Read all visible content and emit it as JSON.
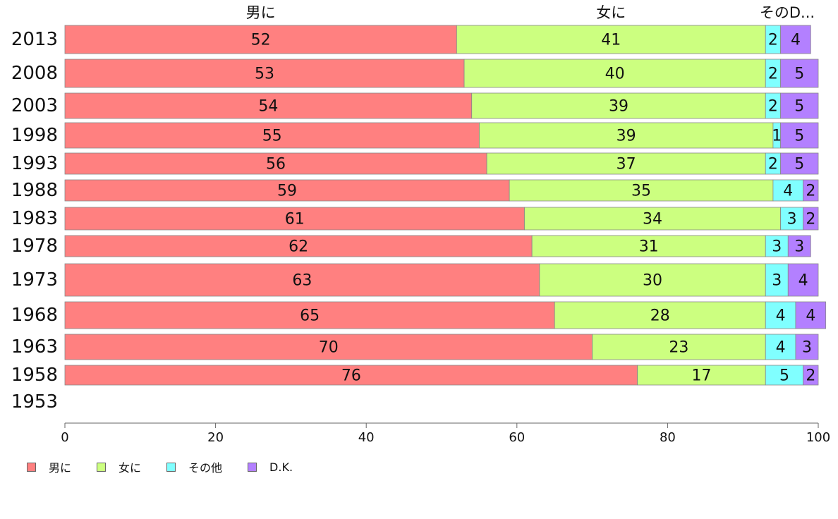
{
  "chart_data": {
    "type": "bar",
    "orientation": "horizontal",
    "stacked": true,
    "categories": [
      "2013",
      "2008",
      "2003",
      "1998",
      "1993",
      "1988",
      "1983",
      "1978",
      "1973",
      "1968",
      "1963",
      "1958",
      "1953"
    ],
    "series": [
      {
        "name": "男に",
        "header": "男に",
        "color": "#ff8080",
        "values": [
          52,
          53,
          54,
          55,
          56,
          59,
          61,
          62,
          63,
          65,
          70,
          76,
          null
        ]
      },
      {
        "name": "女に",
        "header": "女に",
        "color": "#ccff80",
        "values": [
          41,
          40,
          39,
          39,
          37,
          35,
          34,
          31,
          30,
          28,
          23,
          17,
          null
        ]
      },
      {
        "name": "その他",
        "header": "そのD...",
        "color": "#80ffff",
        "values": [
          2,
          2,
          2,
          1,
          2,
          4,
          3,
          3,
          3,
          4,
          4,
          5,
          null
        ]
      },
      {
        "name": "D.K.",
        "header": "",
        "color": "#b380ff",
        "values": [
          4,
          5,
          5,
          5,
          5,
          2,
          2,
          3,
          4,
          4,
          3,
          2,
          null
        ]
      }
    ],
    "xlim": [
      0,
      100
    ],
    "xticks": [
      "0",
      "20",
      "40",
      "60",
      "80",
      "100"
    ],
    "legend_position": "bottom-left",
    "grid": false
  }
}
